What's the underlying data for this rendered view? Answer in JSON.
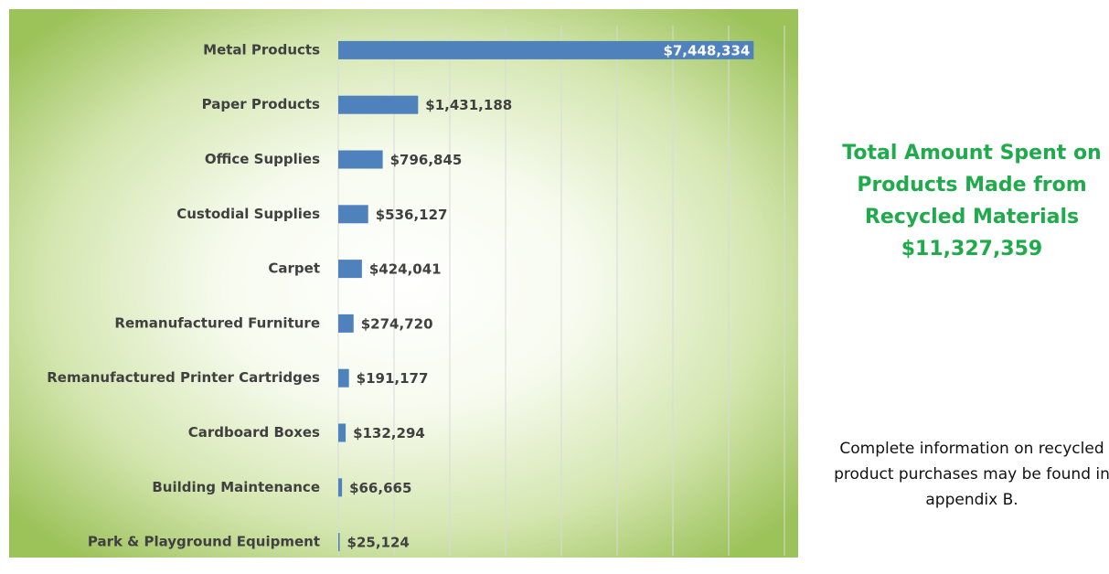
{
  "chart_data": {
    "type": "hbar",
    "categories": [
      "Metal Products",
      "Paper Products",
      "Office Supplies",
      "Custodial Supplies",
      "Carpet",
      "Remanufactured Furniture",
      "Remanufactured Printer Cartridges",
      "Cardboard Boxes",
      "Building Maintenance",
      "Park & Playground Equipment"
    ],
    "values": [
      7448334,
      1431188,
      796845,
      536127,
      424041,
      274720,
      191177,
      132294,
      66665,
      25124
    ],
    "value_labels": [
      "$7,448,334",
      "$1,431,188",
      "$796,845",
      "$536,127",
      "$424,041",
      "$274,720",
      "$191,177",
      "$132,294",
      "$66,665",
      "$25,124"
    ],
    "color": "#4f81bd",
    "xlim": [
      0,
      8000000
    ],
    "xticks": [
      0,
      1000000,
      2000000,
      3000000,
      4000000,
      5000000,
      6000000,
      7000000,
      8000000
    ],
    "grid": true
  },
  "summary": {
    "title": "Total Amount Spent on Products Made from Recycled Materials",
    "total": "$11,327,359"
  },
  "note": "Complete information on recycled product purchases may be found in appendix B."
}
